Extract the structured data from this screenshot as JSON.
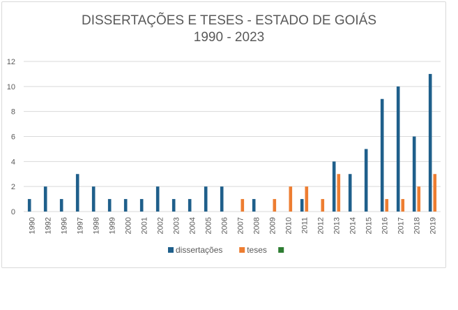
{
  "chart_data": {
    "type": "bar",
    "title": "DISSERTAÇÕES E TESES - ESTADO DE GOIÁS",
    "subtitle": "1990 - 2023",
    "xlabel": "",
    "ylabel": "",
    "ylim": [
      0,
      12
    ],
    "yticks": [
      0,
      2,
      4,
      6,
      8,
      10,
      12
    ],
    "grid": true,
    "legend_position": "bottom",
    "categories": [
      "1990",
      "1992",
      "1996",
      "1997",
      "1998",
      "1999",
      "2000",
      "2001",
      "2002",
      "2003",
      "2004",
      "2005",
      "2006",
      "2007",
      "2008",
      "2009",
      "2010",
      "2011",
      "2012",
      "2013",
      "2014",
      "2015",
      "2016",
      "2017",
      "2018",
      "2019"
    ],
    "series": [
      {
        "name": "dissertações",
        "color": "#1f5f8b",
        "values": [
          1,
          2,
          1,
          3,
          2,
          1,
          1,
          1,
          2,
          1,
          1,
          2,
          2,
          0,
          1,
          0,
          0,
          1,
          0,
          4,
          3,
          5,
          9,
          10,
          6,
          11
        ]
      },
      {
        "name": "teses",
        "color": "#ed7d31",
        "values": [
          0,
          0,
          0,
          0,
          0,
          0,
          0,
          0,
          0,
          0,
          0,
          0,
          0,
          1,
          0,
          1,
          2,
          2,
          1,
          3,
          0,
          0,
          1,
          1,
          2,
          3
        ]
      },
      {
        "name": "",
        "color": "#2e7d32",
        "values": [
          0,
          0,
          0,
          0,
          0,
          0,
          0,
          0,
          0,
          0,
          0,
          0,
          0,
          0,
          0,
          0,
          0,
          0,
          0,
          0,
          0,
          0,
          0,
          0,
          0,
          0
        ]
      }
    ]
  }
}
